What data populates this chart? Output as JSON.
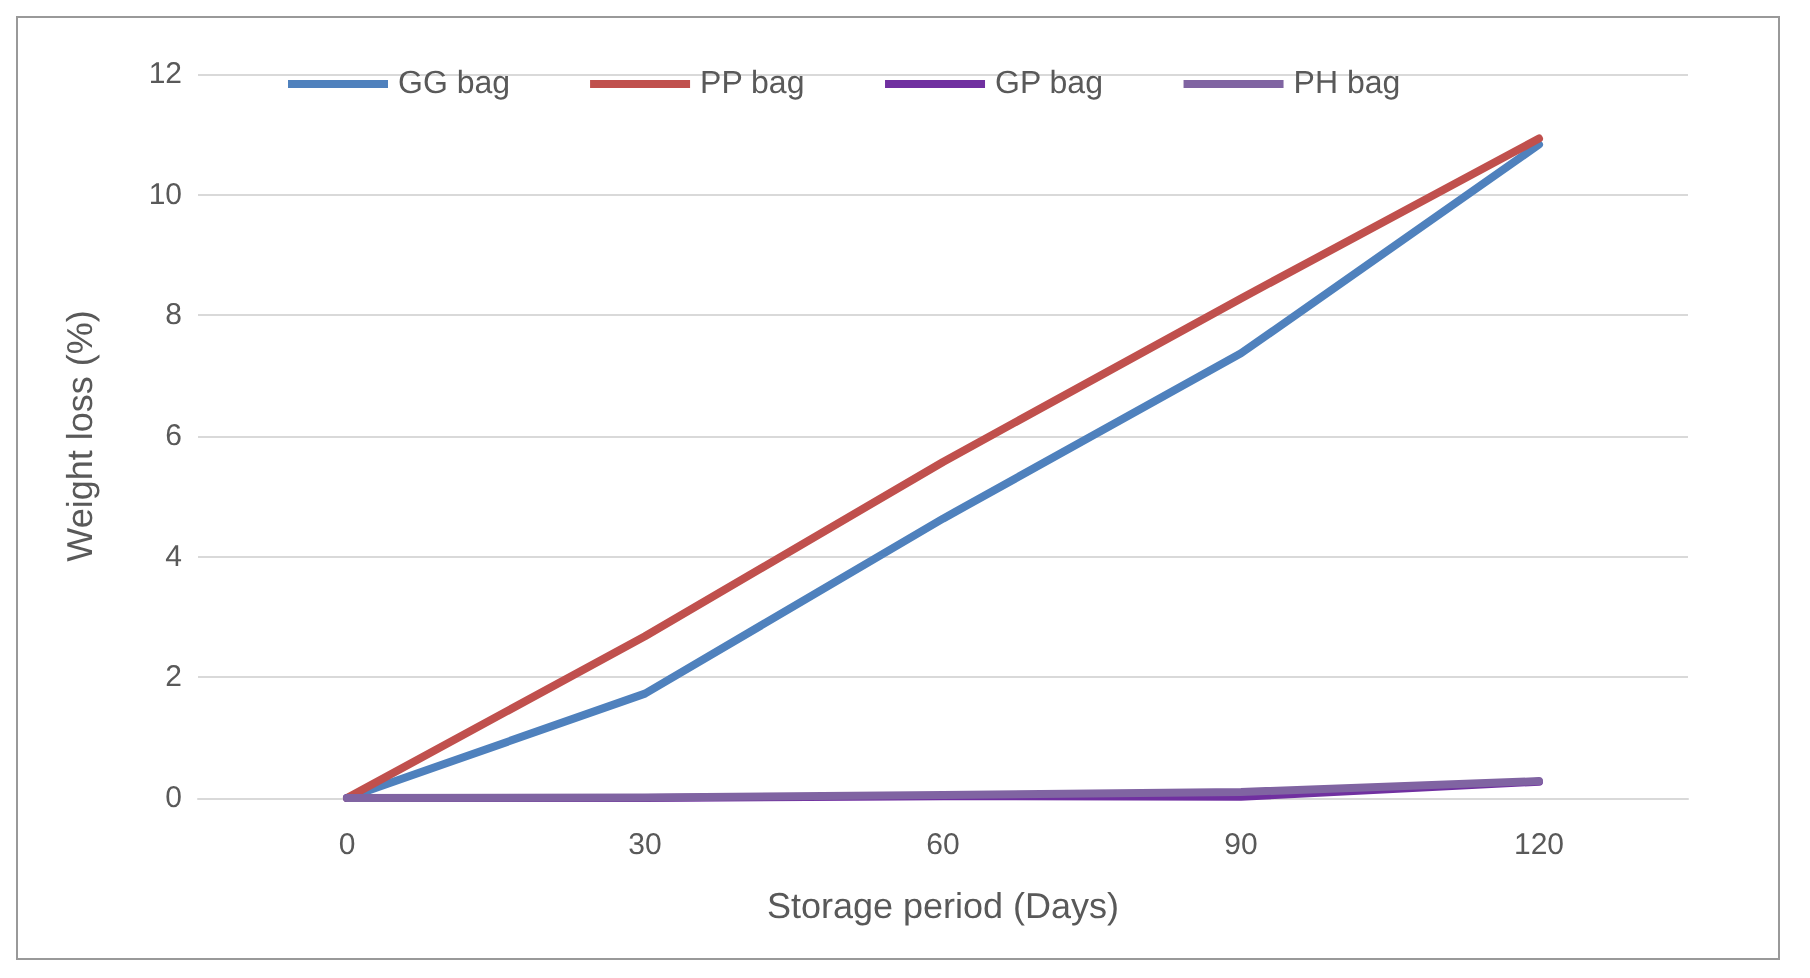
{
  "chart_data": {
    "type": "line",
    "xlabel": "Storage period (Days)",
    "ylabel": "Weight loss (%)",
    "categories": [
      "0",
      "30",
      "60",
      "90",
      "120"
    ],
    "series": [
      {
        "name": "GG bag",
        "color": "#4f81bd",
        "values": [
          0,
          1.73,
          4.63,
          7.37,
          10.83
        ]
      },
      {
        "name": "PP bag",
        "color": "#c0504d",
        "values": [
          0,
          2.68,
          5.57,
          8.28,
          10.93
        ]
      },
      {
        "name": "GP bag",
        "color": "#7030a0",
        "values": [
          0,
          0,
          0.03,
          0.02,
          0.27
        ]
      },
      {
        "name": "PH bag",
        "color": "#8064a2",
        "values": [
          0,
          0.01,
          0.05,
          0.1,
          0.28
        ]
      }
    ],
    "ylim": [
      0,
      12
    ],
    "yticks": [
      0,
      2,
      4,
      6,
      8,
      10,
      12
    ],
    "grid": "y",
    "legend": "top left",
    "marker": "none"
  }
}
